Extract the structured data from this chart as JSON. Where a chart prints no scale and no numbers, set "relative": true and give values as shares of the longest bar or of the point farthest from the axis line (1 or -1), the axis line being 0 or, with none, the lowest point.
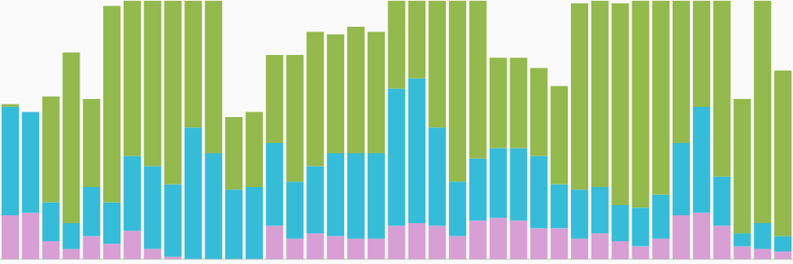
{
  "chart_data": {
    "type": "bar",
    "relative": true,
    "stacked": true,
    "legend": false,
    "grid": false,
    "categories": [
      null,
      null,
      null,
      null,
      null,
      null,
      null,
      null,
      null,
      null,
      null,
      null,
      null,
      null,
      null,
      null,
      null,
      null,
      null,
      null,
      null,
      null,
      null,
      null,
      null,
      null,
      null,
      null,
      null,
      null,
      null,
      null,
      null,
      null,
      null,
      null,
      null,
      null,
      null
    ],
    "series": [
      {
        "color": "#d89fd4",
        "values": [
          0.17,
          0.18,
          0.07,
          0.04,
          0.09,
          0.06,
          0.11,
          0.04,
          0.01,
          null,
          null,
          null,
          null,
          0.13,
          0.08,
          0.1,
          0.09,
          0.08,
          0.08,
          0.13,
          0.14,
          0.13,
          0.09,
          0.15,
          0.16,
          0.15,
          0.12,
          0.12,
          0.08,
          0.1,
          0.07,
          0.05,
          0.08,
          0.17,
          0.18,
          0.13,
          0.05,
          0.04,
          0.03
        ]
      },
      {
        "color": "#35bcd9",
        "values": [
          0.42,
          0.39,
          0.15,
          0.1,
          0.19,
          0.16,
          0.29,
          0.32,
          0.28,
          0.51,
          0.41,
          0.27,
          0.28,
          0.32,
          0.22,
          0.26,
          0.32,
          0.33,
          0.33,
          0.53,
          0.56,
          0.38,
          0.21,
          0.24,
          0.27,
          0.28,
          0.28,
          0.17,
          0.19,
          0.18,
          0.14,
          0.15,
          0.17,
          0.28,
          0.41,
          0.19,
          0.05,
          0.1,
          0.06
        ]
      },
      {
        "color": "#94b94c",
        "values": [
          0.01,
          null,
          0.41,
          0.66,
          0.34,
          0.76,
          0.6,
          0.64,
          0.71,
          0.49,
          0.59,
          0.28,
          0.29,
          0.34,
          0.49,
          0.52,
          0.46,
          0.49,
          0.47,
          0.34,
          0.3,
          0.49,
          0.7,
          0.61,
          0.35,
          0.35,
          0.34,
          0.38,
          0.72,
          0.72,
          0.78,
          0.8,
          0.75,
          0.55,
          0.41,
          0.68,
          0.52,
          0.86,
          0.64
        ]
      }
    ]
  }
}
